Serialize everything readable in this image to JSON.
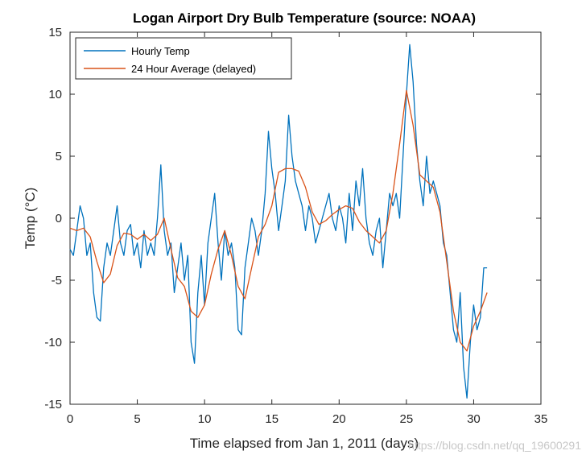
{
  "chart_data": {
    "type": "line",
    "title": "Logan Airport Dry Bulb Temperature (source: NOAA)",
    "xlabel": "Time elapsed from Jan 1, 2011 (days)",
    "ylabel": "Temp (°C)",
    "xlim": [
      0,
      35
    ],
    "ylim": [
      -15,
      15
    ],
    "xticks": [
      0,
      5,
      10,
      15,
      20,
      25,
      30,
      35
    ],
    "yticks": [
      -15,
      -10,
      -5,
      0,
      5,
      10,
      15
    ],
    "legend_position": "top-left",
    "grid": false,
    "series": [
      {
        "name": "Hourly Temp",
        "color": "#0072BD",
        "x": [
          0,
          0.25,
          0.5,
          0.75,
          1,
          1.25,
          1.5,
          1.75,
          2,
          2.25,
          2.5,
          2.75,
          3,
          3.25,
          3.5,
          3.75,
          4,
          4.25,
          4.5,
          4.75,
          5,
          5.25,
          5.5,
          5.75,
          6,
          6.25,
          6.5,
          6.75,
          7,
          7.25,
          7.5,
          7.75,
          8,
          8.25,
          8.5,
          8.75,
          9,
          9.25,
          9.5,
          9.75,
          10,
          10.25,
          10.5,
          10.75,
          11,
          11.25,
          11.5,
          11.75,
          12,
          12.25,
          12.5,
          12.75,
          13,
          13.25,
          13.5,
          13.75,
          14,
          14.25,
          14.5,
          14.75,
          15,
          15.25,
          15.5,
          15.75,
          16,
          16.25,
          16.5,
          16.75,
          17,
          17.25,
          17.5,
          17.75,
          18,
          18.25,
          18.5,
          18.75,
          19,
          19.25,
          19.5,
          19.75,
          20,
          20.25,
          20.5,
          20.75,
          21,
          21.25,
          21.5,
          21.75,
          22,
          22.25,
          22.5,
          22.75,
          23,
          23.25,
          23.5,
          23.75,
          24,
          24.25,
          24.5,
          24.75,
          25,
          25.25,
          25.5,
          25.75,
          26,
          26.25,
          26.5,
          26.75,
          27,
          27.25,
          27.5,
          27.75,
          28,
          28.25,
          28.5,
          28.75,
          29,
          29.25,
          29.5,
          29.75,
          30,
          30.25,
          30.5,
          30.75,
          31
        ],
        "y": [
          -2.5,
          -3,
          -1,
          1,
          0,
          -3,
          -2,
          -6,
          -8,
          -8.3,
          -4,
          -2,
          -3,
          -1,
          1,
          -2,
          -3,
          -1,
          -0.5,
          -3,
          -2,
          -4,
          -1,
          -3,
          -2,
          -3,
          0,
          4.3,
          -1,
          -3,
          -2,
          -6,
          -4,
          -2,
          -5,
          -3,
          -10,
          -11.7,
          -6,
          -3,
          -7,
          -2,
          0,
          2,
          -2,
          -5,
          -1,
          -3,
          -2,
          -4,
          -9,
          -9.4,
          -4,
          -2,
          0,
          -1,
          -3,
          -1,
          2,
          7,
          4,
          2,
          -1,
          1,
          3,
          8.3,
          5,
          3,
          2,
          1,
          -1,
          1,
          0,
          -2,
          -1,
          0,
          1,
          2,
          0,
          -1,
          1,
          0,
          -2,
          2,
          -1,
          3,
          1,
          4,
          0,
          -2,
          -3,
          -1,
          0,
          -4,
          -1,
          2,
          1,
          2,
          0,
          5,
          10,
          14,
          11,
          6,
          3,
          1,
          5,
          2,
          3,
          2,
          1,
          -2,
          -3,
          -6,
          -9,
          -10,
          -6,
          -12,
          -14.5,
          -10,
          -7,
          -9,
          -8,
          -4,
          -4
        ]
      },
      {
        "name": "24 Hour Average (delayed)",
        "color": "#D95319",
        "x": [
          0,
          0.5,
          1,
          1.5,
          2,
          2.5,
          3,
          3.5,
          4,
          4.5,
          5,
          5.5,
          6,
          6.5,
          7,
          7.5,
          8,
          8.5,
          9,
          9.5,
          10,
          10.5,
          11,
          11.5,
          12,
          12.5,
          13,
          13.5,
          14,
          14.5,
          15,
          15.5,
          16,
          16.5,
          17,
          17.5,
          18,
          18.5,
          19,
          19.5,
          20,
          20.5,
          21,
          21.5,
          22,
          22.5,
          23,
          23.5,
          24,
          24.5,
          25,
          25.5,
          26,
          26.5,
          27,
          27.5,
          28,
          28.5,
          29,
          29.5,
          30,
          30.5,
          31
        ],
        "y": [
          -0.8,
          -1,
          -0.8,
          -1.5,
          -3.5,
          -5.2,
          -4.5,
          -2.2,
          -1.2,
          -1.3,
          -1.7,
          -1.3,
          -1.8,
          -1.3,
          0,
          -2.5,
          -4.8,
          -5.5,
          -7.5,
          -8,
          -7,
          -4.5,
          -2.5,
          -1,
          -3,
          -5.5,
          -6.5,
          -4,
          -1.5,
          -0.5,
          1,
          3.7,
          4,
          4,
          3.8,
          2.5,
          0.5,
          -0.5,
          -0.2,
          0.3,
          0.7,
          1,
          0.8,
          -0.3,
          -1,
          -1.5,
          -2,
          -1,
          2,
          6,
          10.3,
          7.5,
          3.5,
          3,
          2.5,
          0.5,
          -3.5,
          -7.5,
          -10,
          -10.7,
          -8.7,
          -7.5,
          -6
        ]
      }
    ],
    "watermark": "https://blog.csdn.net/qq_19600291"
  }
}
